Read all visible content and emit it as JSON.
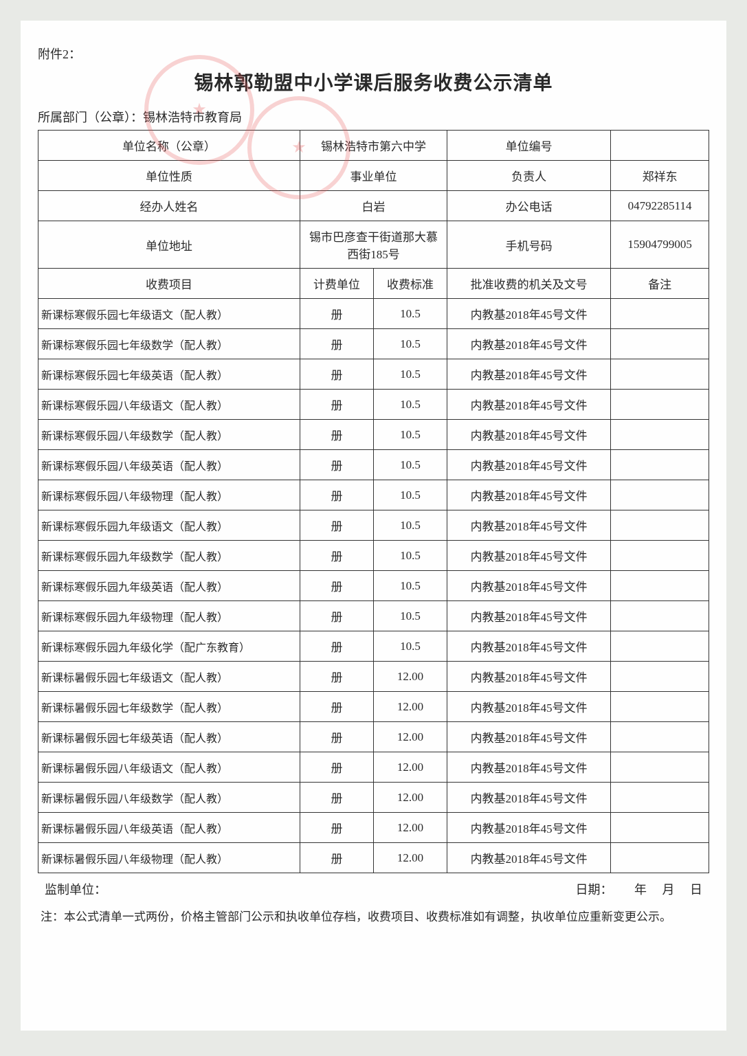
{
  "attachment_label": "附件2：",
  "title": "锡林郭勒盟中小学课后服务收费公示清单",
  "dept_prefix": "所属部门（公章）：",
  "dept_name": "锡林浩特市教育局",
  "header": {
    "unit_name_label": "单位名称（公章）",
    "unit_name_value": "锡林浩特市第六中学",
    "unit_code_label": "单位编号",
    "unit_code_value": "",
    "unit_type_label": "单位性质",
    "unit_type_value": "事业单位",
    "responsible_label": "负责人",
    "responsible_value": "郑祥东",
    "handler_label": "经办人姓名",
    "handler_value": "白岩",
    "office_phone_label": "办公电话",
    "office_phone_value": "04792285114",
    "address_label": "单位地址",
    "address_value": "锡市巴彦查干街道那大慕西街185号",
    "mobile_label": "手机号码",
    "mobile_value": "15904799005"
  },
  "columns": {
    "item": "收费项目",
    "unit": "计费单位",
    "standard": "收费标准",
    "approval": "批准收费的机关及文号",
    "remark": "备注"
  },
  "rows": [
    {
      "item": "新课标寒假乐园七年级语文（配人教）",
      "unit": "册",
      "standard": "10.5",
      "approval": "内教基2018年45号文件",
      "remark": ""
    },
    {
      "item": "新课标寒假乐园七年级数学（配人教）",
      "unit": "册",
      "standard": "10.5",
      "approval": "内教基2018年45号文件",
      "remark": ""
    },
    {
      "item": "新课标寒假乐园七年级英语（配人教）",
      "unit": "册",
      "standard": "10.5",
      "approval": "内教基2018年45号文件",
      "remark": ""
    },
    {
      "item": "新课标寒假乐园八年级语文（配人教）",
      "unit": "册",
      "standard": "10.5",
      "approval": "内教基2018年45号文件",
      "remark": ""
    },
    {
      "item": "新课标寒假乐园八年级数学（配人教）",
      "unit": "册",
      "standard": "10.5",
      "approval": "内教基2018年45号文件",
      "remark": ""
    },
    {
      "item": "新课标寒假乐园八年级英语（配人教）",
      "unit": "册",
      "standard": "10.5",
      "approval": "内教基2018年45号文件",
      "remark": ""
    },
    {
      "item": "新课标寒假乐园八年级物理（配人教）",
      "unit": "册",
      "standard": "10.5",
      "approval": "内教基2018年45号文件",
      "remark": ""
    },
    {
      "item": "新课标寒假乐园九年级语文（配人教）",
      "unit": "册",
      "standard": "10.5",
      "approval": "内教基2018年45号文件",
      "remark": ""
    },
    {
      "item": "新课标寒假乐园九年级数学（配人教）",
      "unit": "册",
      "standard": "10.5",
      "approval": "内教基2018年45号文件",
      "remark": ""
    },
    {
      "item": "新课标寒假乐园九年级英语（配人教）",
      "unit": "册",
      "standard": "10.5",
      "approval": "内教基2018年45号文件",
      "remark": ""
    },
    {
      "item": "新课标寒假乐园九年级物理（配人教）",
      "unit": "册",
      "standard": "10.5",
      "approval": "内教基2018年45号文件",
      "remark": ""
    },
    {
      "item": "新课标寒假乐园九年级化学（配广东教育）",
      "unit": "册",
      "standard": "10.5",
      "approval": "内教基2018年45号文件",
      "remark": ""
    },
    {
      "item": "新课标暑假乐园七年级语文（配人教）",
      "unit": "册",
      "standard": "12.00",
      "approval": "内教基2018年45号文件",
      "remark": ""
    },
    {
      "item": "新课标暑假乐园七年级数学（配人教）",
      "unit": "册",
      "standard": "12.00",
      "approval": "内教基2018年45号文件",
      "remark": ""
    },
    {
      "item": "新课标暑假乐园七年级英语（配人教）",
      "unit": "册",
      "standard": "12.00",
      "approval": "内教基2018年45号文件",
      "remark": ""
    },
    {
      "item": "新课标暑假乐园八年级语文（配人教）",
      "unit": "册",
      "standard": "12.00",
      "approval": "内教基2018年45号文件",
      "remark": ""
    },
    {
      "item": "新课标暑假乐园八年级数学（配人教）",
      "unit": "册",
      "standard": "12.00",
      "approval": "内教基2018年45号文件",
      "remark": ""
    },
    {
      "item": "新课标暑假乐园八年级英语（配人教）",
      "unit": "册",
      "standard": "12.00",
      "approval": "内教基2018年45号文件",
      "remark": ""
    },
    {
      "item": "新课标暑假乐园八年级物理（配人教）",
      "unit": "册",
      "standard": "12.00",
      "approval": "内教基2018年45号文件",
      "remark": ""
    }
  ],
  "footer": {
    "supervise_label": "监制单位：",
    "date_label": "日期：",
    "year": "年",
    "month": "月",
    "day": "日"
  },
  "note": "注：本公式清单一式两份，价格主管部门公示和执收单位存档，收费项目、收费标准如有调整，执收单位应重新变更公示。",
  "styling": {
    "page_bg": "#e8eae6",
    "paper_bg": "#fefefe",
    "text_color": "#2a2a2a",
    "border_color": "#333333",
    "stamp_color": "rgba(230,80,80,0.25)",
    "title_fontsize": 28,
    "body_fontsize": 17,
    "col_widths_pct": [
      32,
      9,
      9,
      20,
      12
    ]
  }
}
